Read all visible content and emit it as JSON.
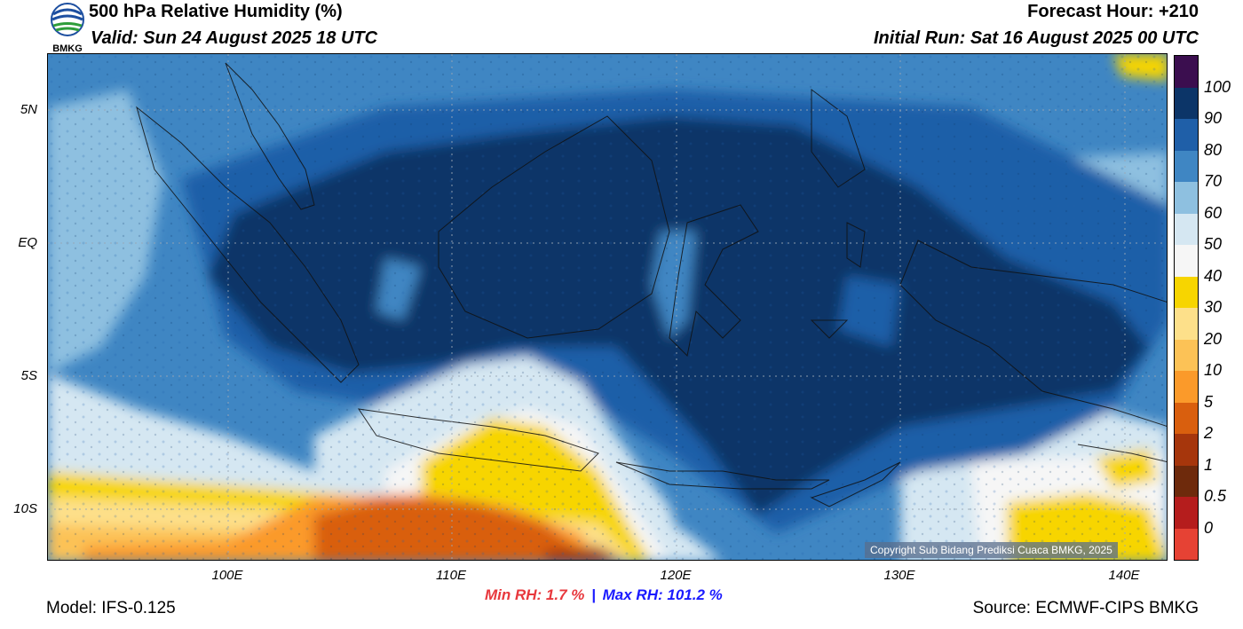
{
  "header": {
    "title": "500 hPa Relative Humidity (%)",
    "valid": "Valid: Sun 24 August 2025 18 UTC",
    "forecast_hour": "Forecast Hour: +210",
    "initial_run": "Initial Run: Sat 16 August 2025 00 UTC",
    "logo_text": "BMKG"
  },
  "map": {
    "lat_labels": [
      "5N",
      "EQ",
      "5S",
      "10S"
    ],
    "lon_labels": [
      "100E",
      "110E",
      "120E",
      "130E",
      "140E"
    ],
    "copyright": "Copyright Sub Bidang Prediksi Cuaca BMKG, 2025"
  },
  "colorbar": {
    "labels": [
      "100",
      "90",
      "80",
      "70",
      "60",
      "50",
      "40",
      "30",
      "20",
      "10",
      "5",
      "2",
      "1",
      "0.5",
      "0"
    ],
    "colors": [
      "#3b0e4f",
      "#0c3568",
      "#1f5fa8",
      "#3f86c3",
      "#8ec0e0",
      "#d5e7f2",
      "#f6f6f6",
      "#f7d500",
      "#fde08a",
      "#fcc256",
      "#fb9a2a",
      "#d95f0e",
      "#a6360c",
      "#6e2a0c",
      "#b51d1d",
      "#e64234"
    ]
  },
  "footer": {
    "min_rh": "Min RH:   1.7 %",
    "separator": "|",
    "max_rh": "Max RH: 101.2 %",
    "model": "Model: IFS-0.125",
    "source": "Source: ECMWF-CIPS BMKG"
  }
}
